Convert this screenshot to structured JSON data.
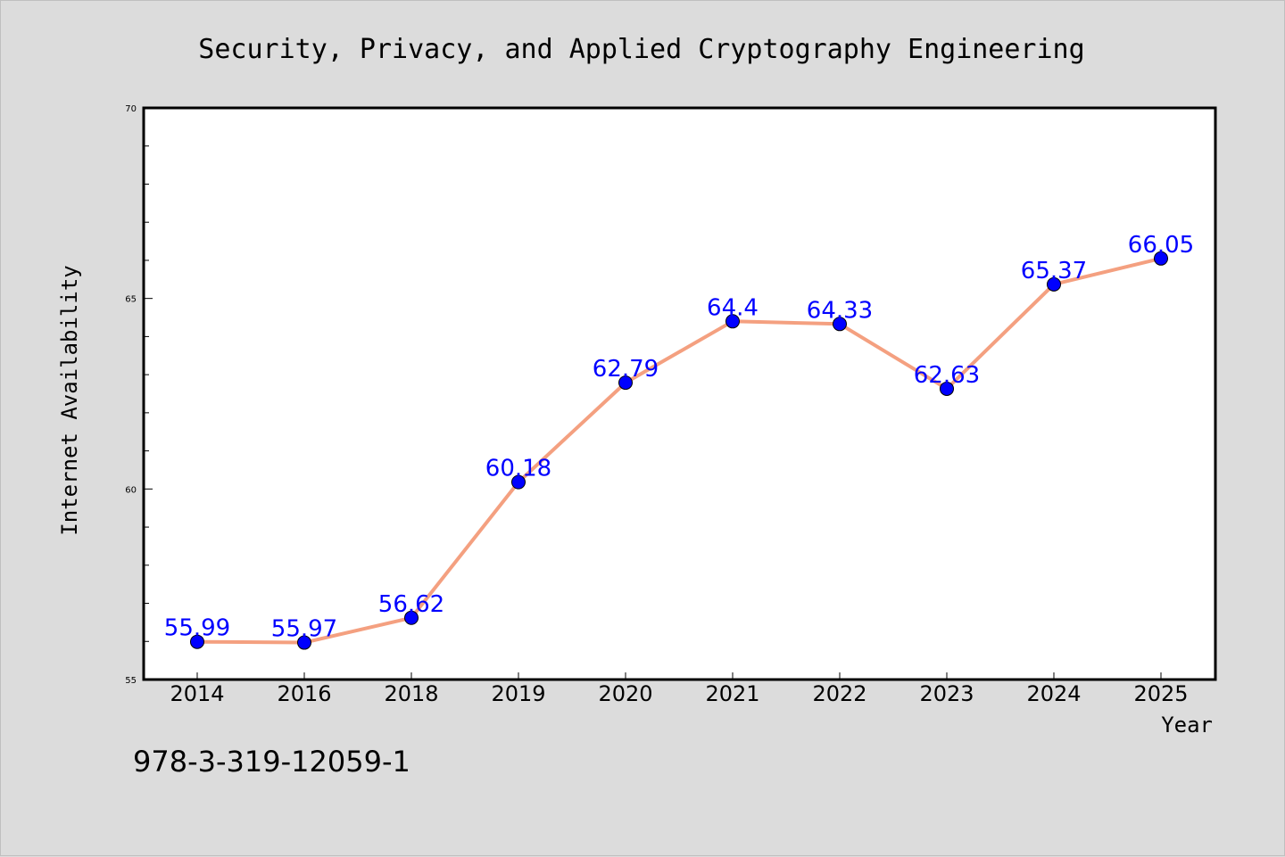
{
  "chart_data": {
    "type": "line",
    "title": "Security, Privacy, and Applied Cryptography Engineering",
    "xlabel": "Year",
    "ylabel": "Internet Availability",
    "categories": [
      "2014",
      "2016",
      "2018",
      "2019",
      "2020",
      "2021",
      "2022",
      "2023",
      "2024",
      "2025"
    ],
    "values": [
      55.99,
      55.97,
      56.62,
      60.18,
      62.79,
      64.4,
      64.33,
      62.63,
      65.37,
      66.05
    ],
    "data_labels": [
      "55.99",
      "55.97",
      "56.62",
      "60.18",
      "62.79",
      "64.4",
      "64.33",
      "62.63",
      "65.37",
      "66.05"
    ],
    "ylim": [
      55,
      70
    ],
    "y_ticks": [
      55,
      60,
      65,
      70
    ],
    "y_tick_labels": [
      "55",
      "60",
      "65",
      "70"
    ],
    "grid": false,
    "legend": "none",
    "colors": {
      "line": "#f4a080",
      "marker": "#0000ff",
      "data_label": "#0000ff",
      "plot_background": "#ffffff",
      "page_background": "#dcdcdc"
    }
  },
  "footer": {
    "code": "978-3-319-12059-1"
  }
}
